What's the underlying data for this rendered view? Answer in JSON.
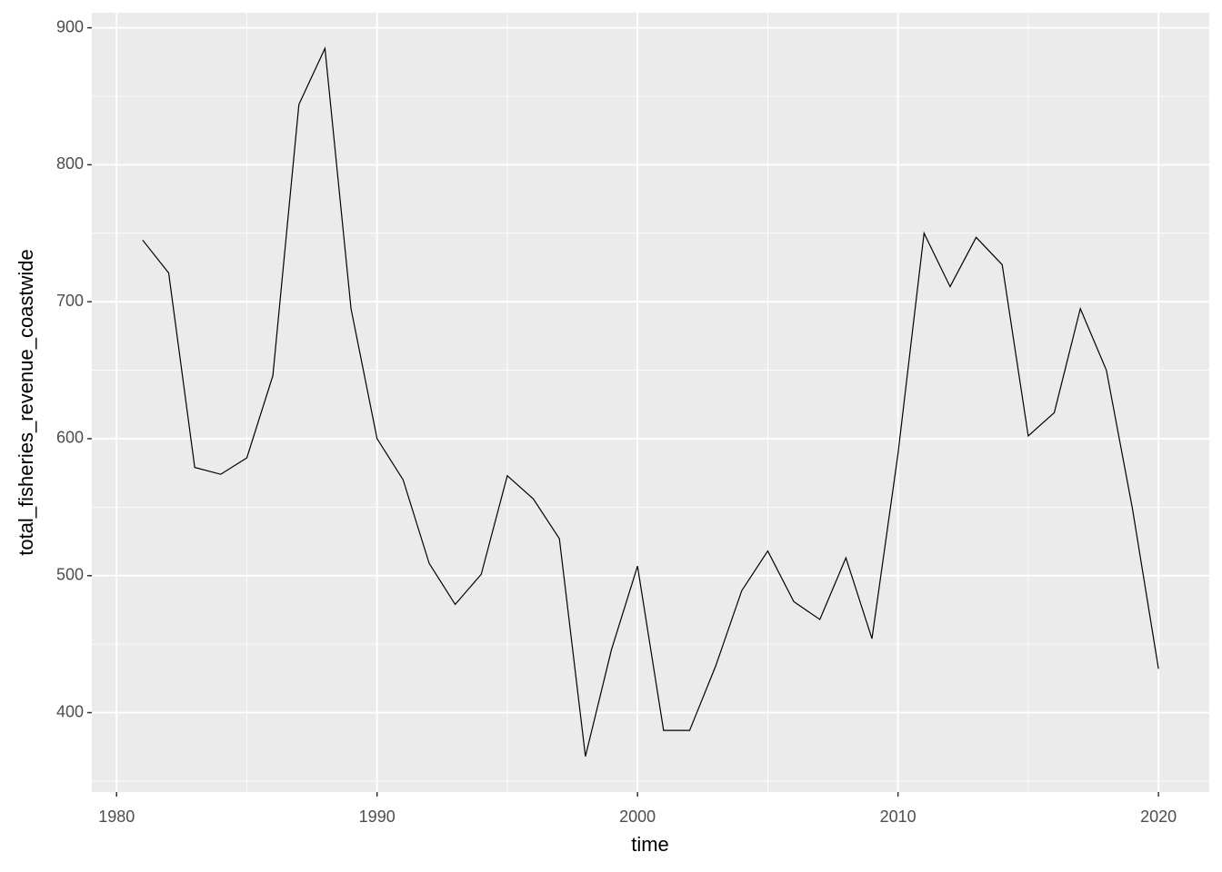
{
  "chart_data": {
    "type": "line",
    "x_label": "time",
    "y_label": "total_fisheries_revenue_coastwide",
    "x": [
      1981,
      1982,
      1983,
      1984,
      1985,
      1986,
      1987,
      1988,
      1989,
      1990,
      1991,
      1992,
      1993,
      1994,
      1995,
      1996,
      1997,
      1998,
      1999,
      2000,
      2001,
      2002,
      2003,
      2004,
      2005,
      2006,
      2007,
      2008,
      2009,
      2010,
      2011,
      2012,
      2013,
      2014,
      2015,
      2016,
      2017,
      2018,
      2019,
      2020
    ],
    "series": [
      {
        "color": "#000000",
        "values": [
          745,
          721,
          579,
          574,
          586,
          646,
          844,
          885,
          695,
          600,
          570,
          509,
          479,
          501,
          573,
          556,
          527,
          368,
          446,
          507,
          387,
          387,
          434,
          489,
          518,
          481,
          468,
          513,
          454,
          589,
          750,
          711,
          747,
          727,
          602,
          619,
          695,
          650,
          549,
          432
        ]
      }
    ],
    "xlim": [
      1979.05,
      2021.95
    ],
    "xticks": [
      1980,
      1990,
      2000,
      2010,
      2020
    ],
    "ylim": [
      342,
      911
    ],
    "yticks": [
      400,
      500,
      600,
      700,
      800,
      900
    ],
    "grid": true
  }
}
